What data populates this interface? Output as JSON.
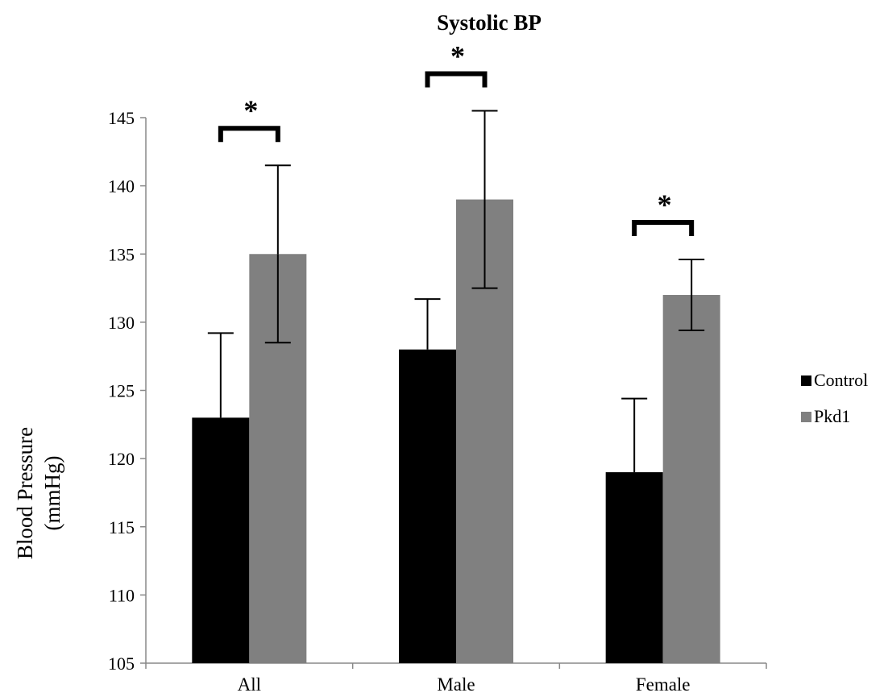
{
  "chart_data": {
    "type": "bar",
    "title": "Systolic BP",
    "ylabel": [
      "Blood Pressure",
      "(mmHg)"
    ],
    "xlabel": "",
    "categories": [
      "All",
      "Male",
      "Female"
    ],
    "ylim": [
      105,
      145
    ],
    "yticks": [
      105,
      110,
      115,
      120,
      125,
      130,
      135,
      140,
      145
    ],
    "series": [
      {
        "name": "Control",
        "color": "#000000",
        "values": [
          123,
          128,
          119
        ],
        "errors": [
          6.2,
          3.7,
          5.4
        ]
      },
      {
        "name": "Pkd1",
        "color": "#808080",
        "values": [
          135,
          139,
          132
        ],
        "errors": [
          6.5,
          6.5,
          2.6
        ]
      }
    ],
    "significance": [
      {
        "category": "All",
        "label": "*"
      },
      {
        "category": "Male",
        "label": "*"
      },
      {
        "category": "Female",
        "label": "*"
      }
    ],
    "legend_position": "right",
    "grid": false
  }
}
